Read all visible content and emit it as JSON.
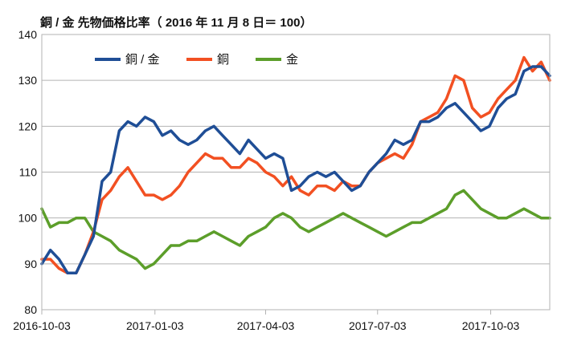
{
  "chart_data": {
    "type": "line",
    "title": "銅 / 金 先物価格比率（ 2016 年 11 月 8 日＝ 100）",
    "xlabel": "",
    "ylabel": "",
    "ylim": [
      80,
      140
    ],
    "yticks": [
      80,
      90,
      100,
      110,
      120,
      130,
      140
    ],
    "xticks": [
      "2016-10-03",
      "2017-01-03",
      "2017-04-03",
      "2017-07-03",
      "2017-10-03"
    ],
    "xrange": [
      "2016-10-03",
      "2017-11-20"
    ],
    "grid": "horizontal",
    "legend_position": "top-left",
    "series": [
      {
        "name": "銅 / 金",
        "color": "#1f4e96",
        "points": [
          [
            "2016-10-03",
            90
          ],
          [
            "2016-10-10",
            93
          ],
          [
            "2016-10-17",
            91
          ],
          [
            "2016-10-24",
            88
          ],
          [
            "2016-10-31",
            88
          ],
          [
            "2016-11-07",
            92
          ],
          [
            "2016-11-14",
            96
          ],
          [
            "2016-11-21",
            108
          ],
          [
            "2016-11-28",
            110
          ],
          [
            "2016-12-05",
            119
          ],
          [
            "2016-12-12",
            121
          ],
          [
            "2016-12-19",
            120
          ],
          [
            "2016-12-26",
            122
          ],
          [
            "2017-01-02",
            121
          ],
          [
            "2017-01-09",
            118
          ],
          [
            "2017-01-16",
            119
          ],
          [
            "2017-01-23",
            117
          ],
          [
            "2017-01-30",
            116
          ],
          [
            "2017-02-06",
            117
          ],
          [
            "2017-02-13",
            119
          ],
          [
            "2017-02-20",
            120
          ],
          [
            "2017-02-27",
            118
          ],
          [
            "2017-03-06",
            116
          ],
          [
            "2017-03-13",
            114
          ],
          [
            "2017-03-20",
            117
          ],
          [
            "2017-03-27",
            115
          ],
          [
            "2017-04-03",
            113
          ],
          [
            "2017-04-10",
            114
          ],
          [
            "2017-04-17",
            113
          ],
          [
            "2017-04-24",
            106
          ],
          [
            "2017-05-01",
            107
          ],
          [
            "2017-05-08",
            109
          ],
          [
            "2017-05-15",
            110
          ],
          [
            "2017-05-22",
            109
          ],
          [
            "2017-05-29",
            110
          ],
          [
            "2017-06-05",
            108
          ],
          [
            "2017-06-12",
            106
          ],
          [
            "2017-06-19",
            107
          ],
          [
            "2017-06-26",
            110
          ],
          [
            "2017-07-03",
            112
          ],
          [
            "2017-07-10",
            114
          ],
          [
            "2017-07-17",
            117
          ],
          [
            "2017-07-24",
            116
          ],
          [
            "2017-07-31",
            117
          ],
          [
            "2017-08-07",
            121
          ],
          [
            "2017-08-14",
            121
          ],
          [
            "2017-08-21",
            122
          ],
          [
            "2017-08-28",
            124
          ],
          [
            "2017-09-04",
            125
          ],
          [
            "2017-09-11",
            123
          ],
          [
            "2017-09-18",
            121
          ],
          [
            "2017-09-25",
            119
          ],
          [
            "2017-10-02",
            120
          ],
          [
            "2017-10-09",
            124
          ],
          [
            "2017-10-16",
            126
          ],
          [
            "2017-10-23",
            127
          ],
          [
            "2017-10-30",
            132
          ],
          [
            "2017-11-06",
            133
          ],
          [
            "2017-11-13",
            133
          ],
          [
            "2017-11-20",
            131
          ]
        ]
      },
      {
        "name": "銅",
        "color": "#f25022",
        "points": [
          [
            "2016-10-03",
            91
          ],
          [
            "2016-10-10",
            91
          ],
          [
            "2016-10-17",
            89
          ],
          [
            "2016-10-24",
            88
          ],
          [
            "2016-10-31",
            88
          ],
          [
            "2016-11-07",
            92
          ],
          [
            "2016-11-14",
            97
          ],
          [
            "2016-11-21",
            104
          ],
          [
            "2016-11-28",
            106
          ],
          [
            "2016-12-05",
            109
          ],
          [
            "2016-12-12",
            111
          ],
          [
            "2016-12-19",
            108
          ],
          [
            "2016-12-26",
            105
          ],
          [
            "2017-01-02",
            105
          ],
          [
            "2017-01-09",
            104
          ],
          [
            "2017-01-16",
            105
          ],
          [
            "2017-01-23",
            107
          ],
          [
            "2017-01-30",
            110
          ],
          [
            "2017-02-06",
            112
          ],
          [
            "2017-02-13",
            114
          ],
          [
            "2017-02-20",
            113
          ],
          [
            "2017-02-27",
            113
          ],
          [
            "2017-03-06",
            111
          ],
          [
            "2017-03-13",
            111
          ],
          [
            "2017-03-20",
            113
          ],
          [
            "2017-03-27",
            112
          ],
          [
            "2017-04-03",
            110
          ],
          [
            "2017-04-10",
            109
          ],
          [
            "2017-04-17",
            107
          ],
          [
            "2017-04-24",
            109
          ],
          [
            "2017-05-01",
            106
          ],
          [
            "2017-05-08",
            105
          ],
          [
            "2017-05-15",
            107
          ],
          [
            "2017-05-22",
            107
          ],
          [
            "2017-05-29",
            106
          ],
          [
            "2017-06-05",
            108
          ],
          [
            "2017-06-12",
            107
          ],
          [
            "2017-06-19",
            107
          ],
          [
            "2017-06-26",
            110
          ],
          [
            "2017-07-03",
            112
          ],
          [
            "2017-07-10",
            113
          ],
          [
            "2017-07-17",
            114
          ],
          [
            "2017-07-24",
            113
          ],
          [
            "2017-07-31",
            116
          ],
          [
            "2017-08-07",
            121
          ],
          [
            "2017-08-14",
            122
          ],
          [
            "2017-08-21",
            123
          ],
          [
            "2017-08-28",
            126
          ],
          [
            "2017-09-04",
            131
          ],
          [
            "2017-09-11",
            130
          ],
          [
            "2017-09-18",
            124
          ],
          [
            "2017-09-25",
            122
          ],
          [
            "2017-10-02",
            123
          ],
          [
            "2017-10-09",
            126
          ],
          [
            "2017-10-16",
            128
          ],
          [
            "2017-10-23",
            130
          ],
          [
            "2017-10-30",
            135
          ],
          [
            "2017-11-06",
            132
          ],
          [
            "2017-11-13",
            134
          ],
          [
            "2017-11-20",
            130
          ]
        ]
      },
      {
        "name": "金",
        "color": "#5c9e2a",
        "points": [
          [
            "2016-10-03",
            102
          ],
          [
            "2016-10-10",
            98
          ],
          [
            "2016-10-17",
            99
          ],
          [
            "2016-10-24",
            99
          ],
          [
            "2016-10-31",
            100
          ],
          [
            "2016-11-07",
            100
          ],
          [
            "2016-11-14",
            97
          ],
          [
            "2016-11-21",
            96
          ],
          [
            "2016-11-28",
            95
          ],
          [
            "2016-12-05",
            93
          ],
          [
            "2016-12-12",
            92
          ],
          [
            "2016-12-19",
            91
          ],
          [
            "2016-12-26",
            89
          ],
          [
            "2017-01-02",
            90
          ],
          [
            "2017-01-09",
            92
          ],
          [
            "2017-01-16",
            94
          ],
          [
            "2017-01-23",
            94
          ],
          [
            "2017-01-30",
            95
          ],
          [
            "2017-02-06",
            95
          ],
          [
            "2017-02-13",
            96
          ],
          [
            "2017-02-20",
            97
          ],
          [
            "2017-02-27",
            96
          ],
          [
            "2017-03-06",
            95
          ],
          [
            "2017-03-13",
            94
          ],
          [
            "2017-03-20",
            96
          ],
          [
            "2017-03-27",
            97
          ],
          [
            "2017-04-03",
            98
          ],
          [
            "2017-04-10",
            100
          ],
          [
            "2017-04-17",
            101
          ],
          [
            "2017-04-24",
            100
          ],
          [
            "2017-05-01",
            98
          ],
          [
            "2017-05-08",
            97
          ],
          [
            "2017-05-15",
            98
          ],
          [
            "2017-05-22",
            99
          ],
          [
            "2017-05-29",
            100
          ],
          [
            "2017-06-05",
            101
          ],
          [
            "2017-06-12",
            100
          ],
          [
            "2017-06-19",
            99
          ],
          [
            "2017-06-26",
            98
          ],
          [
            "2017-07-03",
            97
          ],
          [
            "2017-07-10",
            96
          ],
          [
            "2017-07-17",
            97
          ],
          [
            "2017-07-24",
            98
          ],
          [
            "2017-07-31",
            99
          ],
          [
            "2017-08-07",
            99
          ],
          [
            "2017-08-14",
            100
          ],
          [
            "2017-08-21",
            101
          ],
          [
            "2017-08-28",
            102
          ],
          [
            "2017-09-04",
            105
          ],
          [
            "2017-09-11",
            106
          ],
          [
            "2017-09-18",
            104
          ],
          [
            "2017-09-25",
            102
          ],
          [
            "2017-10-02",
            101
          ],
          [
            "2017-10-09",
            100
          ],
          [
            "2017-10-16",
            100
          ],
          [
            "2017-10-23",
            101
          ],
          [
            "2017-10-30",
            102
          ],
          [
            "2017-11-06",
            101
          ],
          [
            "2017-11-13",
            100
          ],
          [
            "2017-11-20",
            100
          ]
        ]
      }
    ]
  }
}
